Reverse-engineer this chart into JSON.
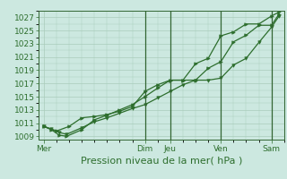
{
  "bg_color": "#cce8e0",
  "plot_bg_color": "#cce8e0",
  "grid_color": "#aaccbb",
  "line_color": "#2d6e2d",
  "marker_color": "#2d6e2d",
  "xlabel": "Pression niveau de la mer( hPa )",
  "ylim": [
    1008.5,
    1028.0
  ],
  "yticks": [
    1009,
    1011,
    1013,
    1015,
    1017,
    1019,
    1021,
    1023,
    1025,
    1027
  ],
  "xtick_labels": [
    "Mer",
    "Dim",
    "Jeu",
    "Ven",
    "Sam"
  ],
  "xtick_positions": [
    0.0,
    4.0,
    5.0,
    7.0,
    9.0
  ],
  "xlim": [
    -0.2,
    9.5
  ],
  "series1_x": [
    0.0,
    0.3,
    0.6,
    0.9,
    1.5,
    2.0,
    2.5,
    3.0,
    3.5,
    4.0,
    4.5,
    5.0,
    5.5,
    6.0,
    6.5,
    7.0,
    7.5,
    8.0,
    8.5,
    9.0,
    9.3
  ],
  "series1_y": [
    1010.5,
    1010.1,
    1009.6,
    1009.3,
    1010.3,
    1011.2,
    1011.8,
    1012.5,
    1013.2,
    1013.8,
    1014.8,
    1015.8,
    1016.8,
    1017.5,
    1017.5,
    1017.8,
    1019.8,
    1020.8,
    1023.2,
    1025.5,
    1027.2
  ],
  "series2_x": [
    0.0,
    0.3,
    0.6,
    0.9,
    1.5,
    2.0,
    2.5,
    3.0,
    3.5,
    4.0,
    4.5,
    5.0,
    5.5,
    6.0,
    6.5,
    7.0,
    7.5,
    8.0,
    8.5,
    9.0,
    9.3
  ],
  "series2_y": [
    1010.5,
    1010.0,
    1009.2,
    1009.0,
    1010.0,
    1011.5,
    1012.2,
    1013.0,
    1013.8,
    1015.0,
    1016.3,
    1017.5,
    1017.5,
    1017.5,
    1019.3,
    1020.3,
    1023.3,
    1024.3,
    1025.8,
    1025.8,
    1027.5
  ],
  "series3_x": [
    0.0,
    0.5,
    1.0,
    1.5,
    2.0,
    2.5,
    3.0,
    3.5,
    4.0,
    4.5,
    5.0,
    5.5,
    6.0,
    6.5,
    7.0,
    7.5,
    8.0,
    8.5,
    9.0,
    9.3
  ],
  "series3_y": [
    1010.5,
    1009.8,
    1010.5,
    1011.8,
    1012.0,
    1012.3,
    1012.8,
    1013.5,
    1015.8,
    1016.8,
    1017.5,
    1017.5,
    1020.0,
    1020.8,
    1024.2,
    1024.8,
    1026.0,
    1026.0,
    1027.2,
    1027.8
  ],
  "tick_fontsize": 6.5,
  "xlabel_fontsize": 8,
  "vline_positions": [
    4.0,
    5.0,
    7.0,
    9.0
  ]
}
